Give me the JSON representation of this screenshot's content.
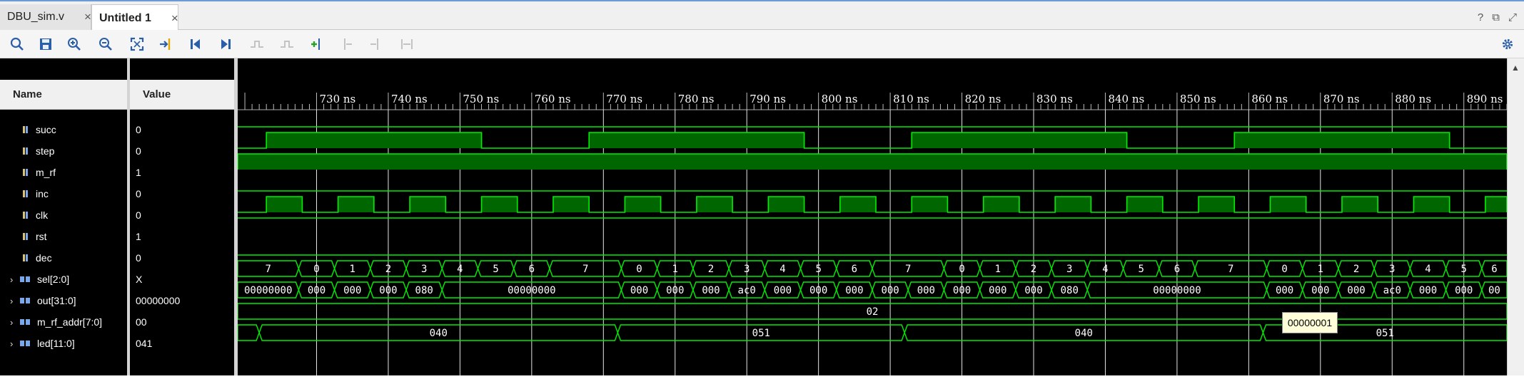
{
  "tabs": [
    {
      "label": "DBU_sim.v",
      "close": "×",
      "active": false
    },
    {
      "label": "Untitled 1",
      "close": "×",
      "active": true
    }
  ],
  "window_controls": [
    "?",
    "⧉",
    "⤢"
  ],
  "toolbar": {
    "icons": [
      "search-icon",
      "save-icon",
      "zoom-in-icon",
      "zoom-out-icon",
      "zoom-fit-icon",
      "go-to-cursor-icon",
      "go-to-start-icon",
      "go-to-end-icon",
      "previous-transition-icon",
      "next-transition-icon",
      "add-marker-icon",
      "previous-marker-icon",
      "next-marker-icon",
      "swap-cursors-icon"
    ],
    "settings_icon": "gear-icon"
  },
  "panel": {
    "name_header": "Name",
    "value_header": "Value"
  },
  "signals": [
    {
      "name": "succ",
      "value": "0",
      "bus": false
    },
    {
      "name": "step",
      "value": "0",
      "bus": false
    },
    {
      "name": "m_rf",
      "value": "1",
      "bus": false
    },
    {
      "name": "inc",
      "value": "0",
      "bus": false
    },
    {
      "name": "clk",
      "value": "0",
      "bus": false
    },
    {
      "name": "rst",
      "value": "1",
      "bus": false
    },
    {
      "name": "dec",
      "value": "0",
      "bus": false
    },
    {
      "name": "sel[2:0]",
      "value": "X",
      "bus": true
    },
    {
      "name": "out[31:0]",
      "value": "00000000",
      "bus": true
    },
    {
      "name": "m_rf_addr[7:0]",
      "value": "00",
      "bus": true
    },
    {
      "name": "led[11:0]",
      "value": "041",
      "bus": true
    }
  ],
  "timeline": {
    "unit": "ns",
    "ticks": [
      730,
      740,
      750,
      760,
      770,
      780,
      790,
      800,
      810,
      820,
      830,
      840,
      850,
      860,
      870,
      880,
      890
    ]
  },
  "waves": {
    "step_high": [
      [
        723,
        753
      ],
      [
        768,
        798
      ],
      [
        813,
        843
      ],
      [
        858,
        888
      ]
    ],
    "m_rf_high": [
      [
        719,
        896
      ]
    ],
    "clk_high": [
      [
        723,
        728
      ],
      [
        733,
        738
      ],
      [
        743,
        748
      ],
      [
        753,
        758
      ],
      [
        763,
        768
      ],
      [
        773,
        778
      ],
      [
        783,
        788
      ],
      [
        793,
        798
      ],
      [
        803,
        808
      ],
      [
        813,
        818
      ],
      [
        823,
        828
      ],
      [
        833,
        838
      ],
      [
        843,
        848
      ],
      [
        853,
        858
      ],
      [
        863,
        868
      ],
      [
        873,
        878
      ],
      [
        883,
        888
      ],
      [
        893,
        896
      ]
    ],
    "sel": [
      [
        719,
        727.5,
        "7"
      ],
      [
        727.5,
        732.5,
        "0"
      ],
      [
        732.5,
        737.5,
        "1"
      ],
      [
        737.5,
        742.5,
        "2"
      ],
      [
        742.5,
        747.5,
        "3"
      ],
      [
        747.5,
        752.5,
        "4"
      ],
      [
        752.5,
        757.5,
        "5"
      ],
      [
        757.5,
        762.5,
        "6"
      ],
      [
        762.5,
        772.5,
        "7"
      ],
      [
        772.5,
        777.5,
        "0"
      ],
      [
        777.5,
        782.5,
        "1"
      ],
      [
        782.5,
        787.5,
        "2"
      ],
      [
        787.5,
        792.5,
        "3"
      ],
      [
        792.5,
        797.5,
        "4"
      ],
      [
        797.5,
        802.5,
        "5"
      ],
      [
        802.5,
        807.5,
        "6"
      ],
      [
        807.5,
        817.5,
        "7"
      ],
      [
        817.5,
        822.5,
        "0"
      ],
      [
        822.5,
        827.5,
        "1"
      ],
      [
        827.5,
        832.5,
        "2"
      ],
      [
        832.5,
        837.5,
        "3"
      ],
      [
        837.5,
        842.5,
        "4"
      ],
      [
        842.5,
        847.5,
        "5"
      ],
      [
        847.5,
        852.5,
        "6"
      ],
      [
        852.5,
        862.5,
        "7"
      ],
      [
        862.5,
        867.5,
        "0"
      ],
      [
        867.5,
        872.5,
        "1"
      ],
      [
        872.5,
        877.5,
        "2"
      ],
      [
        877.5,
        882.5,
        "3"
      ],
      [
        882.5,
        887.5,
        "4"
      ],
      [
        887.5,
        892.5,
        "5"
      ],
      [
        892.5,
        896,
        "6"
      ]
    ],
    "out": [
      [
        719,
        727.5,
        "00000000"
      ],
      [
        727.5,
        732.5,
        "000"
      ],
      [
        732.5,
        737.5,
        "000"
      ],
      [
        737.5,
        742.5,
        "000"
      ],
      [
        742.5,
        747.5,
        "080"
      ],
      [
        747.5,
        772.5,
        "00000000"
      ],
      [
        772.5,
        777.5,
        "000"
      ],
      [
        777.5,
        782.5,
        "000"
      ],
      [
        782.5,
        787.5,
        "000"
      ],
      [
        787.5,
        792.5,
        "ac0"
      ],
      [
        792.5,
        797.5,
        "000"
      ],
      [
        797.5,
        802.5,
        "000"
      ],
      [
        802.5,
        807.5,
        "000"
      ],
      [
        807.5,
        812.5,
        "000"
      ],
      [
        812.5,
        817.5,
        "000"
      ],
      [
        817.5,
        822.5,
        "000"
      ],
      [
        822.5,
        827.5,
        "000"
      ],
      [
        827.5,
        832.5,
        "000"
      ],
      [
        832.5,
        837.5,
        "080"
      ],
      [
        837.5,
        862.5,
        "00000000"
      ],
      [
        862.5,
        867.5,
        "000"
      ],
      [
        867.5,
        872.5,
        "000"
      ],
      [
        872.5,
        877.5,
        "000"
      ],
      [
        877.5,
        882.5,
        "ac0"
      ],
      [
        882.5,
        887.5,
        "000"
      ],
      [
        887.5,
        892.5,
        "000"
      ],
      [
        892.5,
        896,
        "00"
      ]
    ],
    "m_rf_addr": [
      [
        719,
        896,
        "02"
      ]
    ],
    "led": [
      [
        719,
        722,
        ""
      ],
      [
        722,
        772,
        "040"
      ],
      [
        772,
        812,
        "051"
      ],
      [
        812,
        862,
        "040"
      ],
      [
        862,
        896,
        "051"
      ]
    ]
  },
  "tooltip": "00000001"
}
